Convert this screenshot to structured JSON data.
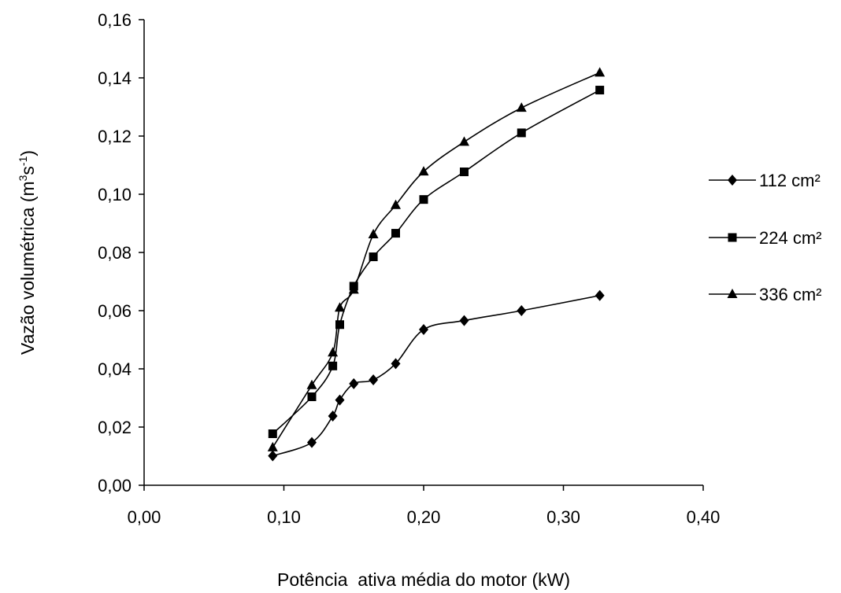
{
  "chart_data": {
    "type": "line",
    "title": "",
    "xlabel": "Potência  ativa média do motor (kW)",
    "ylabel_main": "Vazão volumétrica (m",
    "ylabel_sup1": "3",
    "ylabel_mid": "s",
    "ylabel_sup2": "-1",
    "ylabel_end": ")",
    "xlim": [
      0,
      0.4
    ],
    "ylim": [
      0,
      0.16
    ],
    "xticks": [
      {
        "value": 0.0,
        "label": "0,00"
      },
      {
        "value": 0.1,
        "label": "0,10"
      },
      {
        "value": 0.2,
        "label": "0,20"
      },
      {
        "value": 0.3,
        "label": "0,30"
      },
      {
        "value": 0.4,
        "label": "0,40"
      }
    ],
    "yticks": [
      {
        "value": 0.0,
        "label": "0,00"
      },
      {
        "value": 0.02,
        "label": "0,02"
      },
      {
        "value": 0.04,
        "label": "0,04"
      },
      {
        "value": 0.06,
        "label": "0,06"
      },
      {
        "value": 0.08,
        "label": "0,08"
      },
      {
        "value": 0.1,
        "label": "0,10"
      },
      {
        "value": 0.12,
        "label": "0,12"
      },
      {
        "value": 0.14,
        "label": "0,14"
      },
      {
        "value": 0.16,
        "label": "0,16"
      }
    ],
    "grid": false,
    "legend_position": "right",
    "series": [
      {
        "name": "112 cm²",
        "marker": "diamond",
        "color": "#000000",
        "x": [
          0.092,
          0.12,
          0.135,
          0.14,
          0.15,
          0.164,
          0.18,
          0.2,
          0.229,
          0.27,
          0.326
        ],
        "y": [
          0.0101,
          0.0147,
          0.0238,
          0.0293,
          0.0349,
          0.0362,
          0.0418,
          0.0535,
          0.0566,
          0.06,
          0.0652
        ]
      },
      {
        "name": "224 cm²",
        "marker": "square",
        "color": "#000000",
        "x": [
          0.092,
          0.12,
          0.135,
          0.14,
          0.15,
          0.164,
          0.18,
          0.2,
          0.229,
          0.27,
          0.326
        ],
        "y": [
          0.0177,
          0.0304,
          0.041,
          0.0552,
          0.0684,
          0.0785,
          0.0866,
          0.0982,
          0.1077,
          0.1211,
          0.1358
        ]
      },
      {
        "name": "336 cm²",
        "marker": "triangle",
        "color": "#000000",
        "x": [
          0.092,
          0.12,
          0.135,
          0.14,
          0.15,
          0.164,
          0.18,
          0.2,
          0.229,
          0.27,
          0.326
        ],
        "y": [
          0.013,
          0.0344,
          0.0456,
          0.061,
          0.0672,
          0.0862,
          0.0963,
          0.1078,
          0.118,
          0.1297,
          0.1418
        ]
      }
    ]
  }
}
